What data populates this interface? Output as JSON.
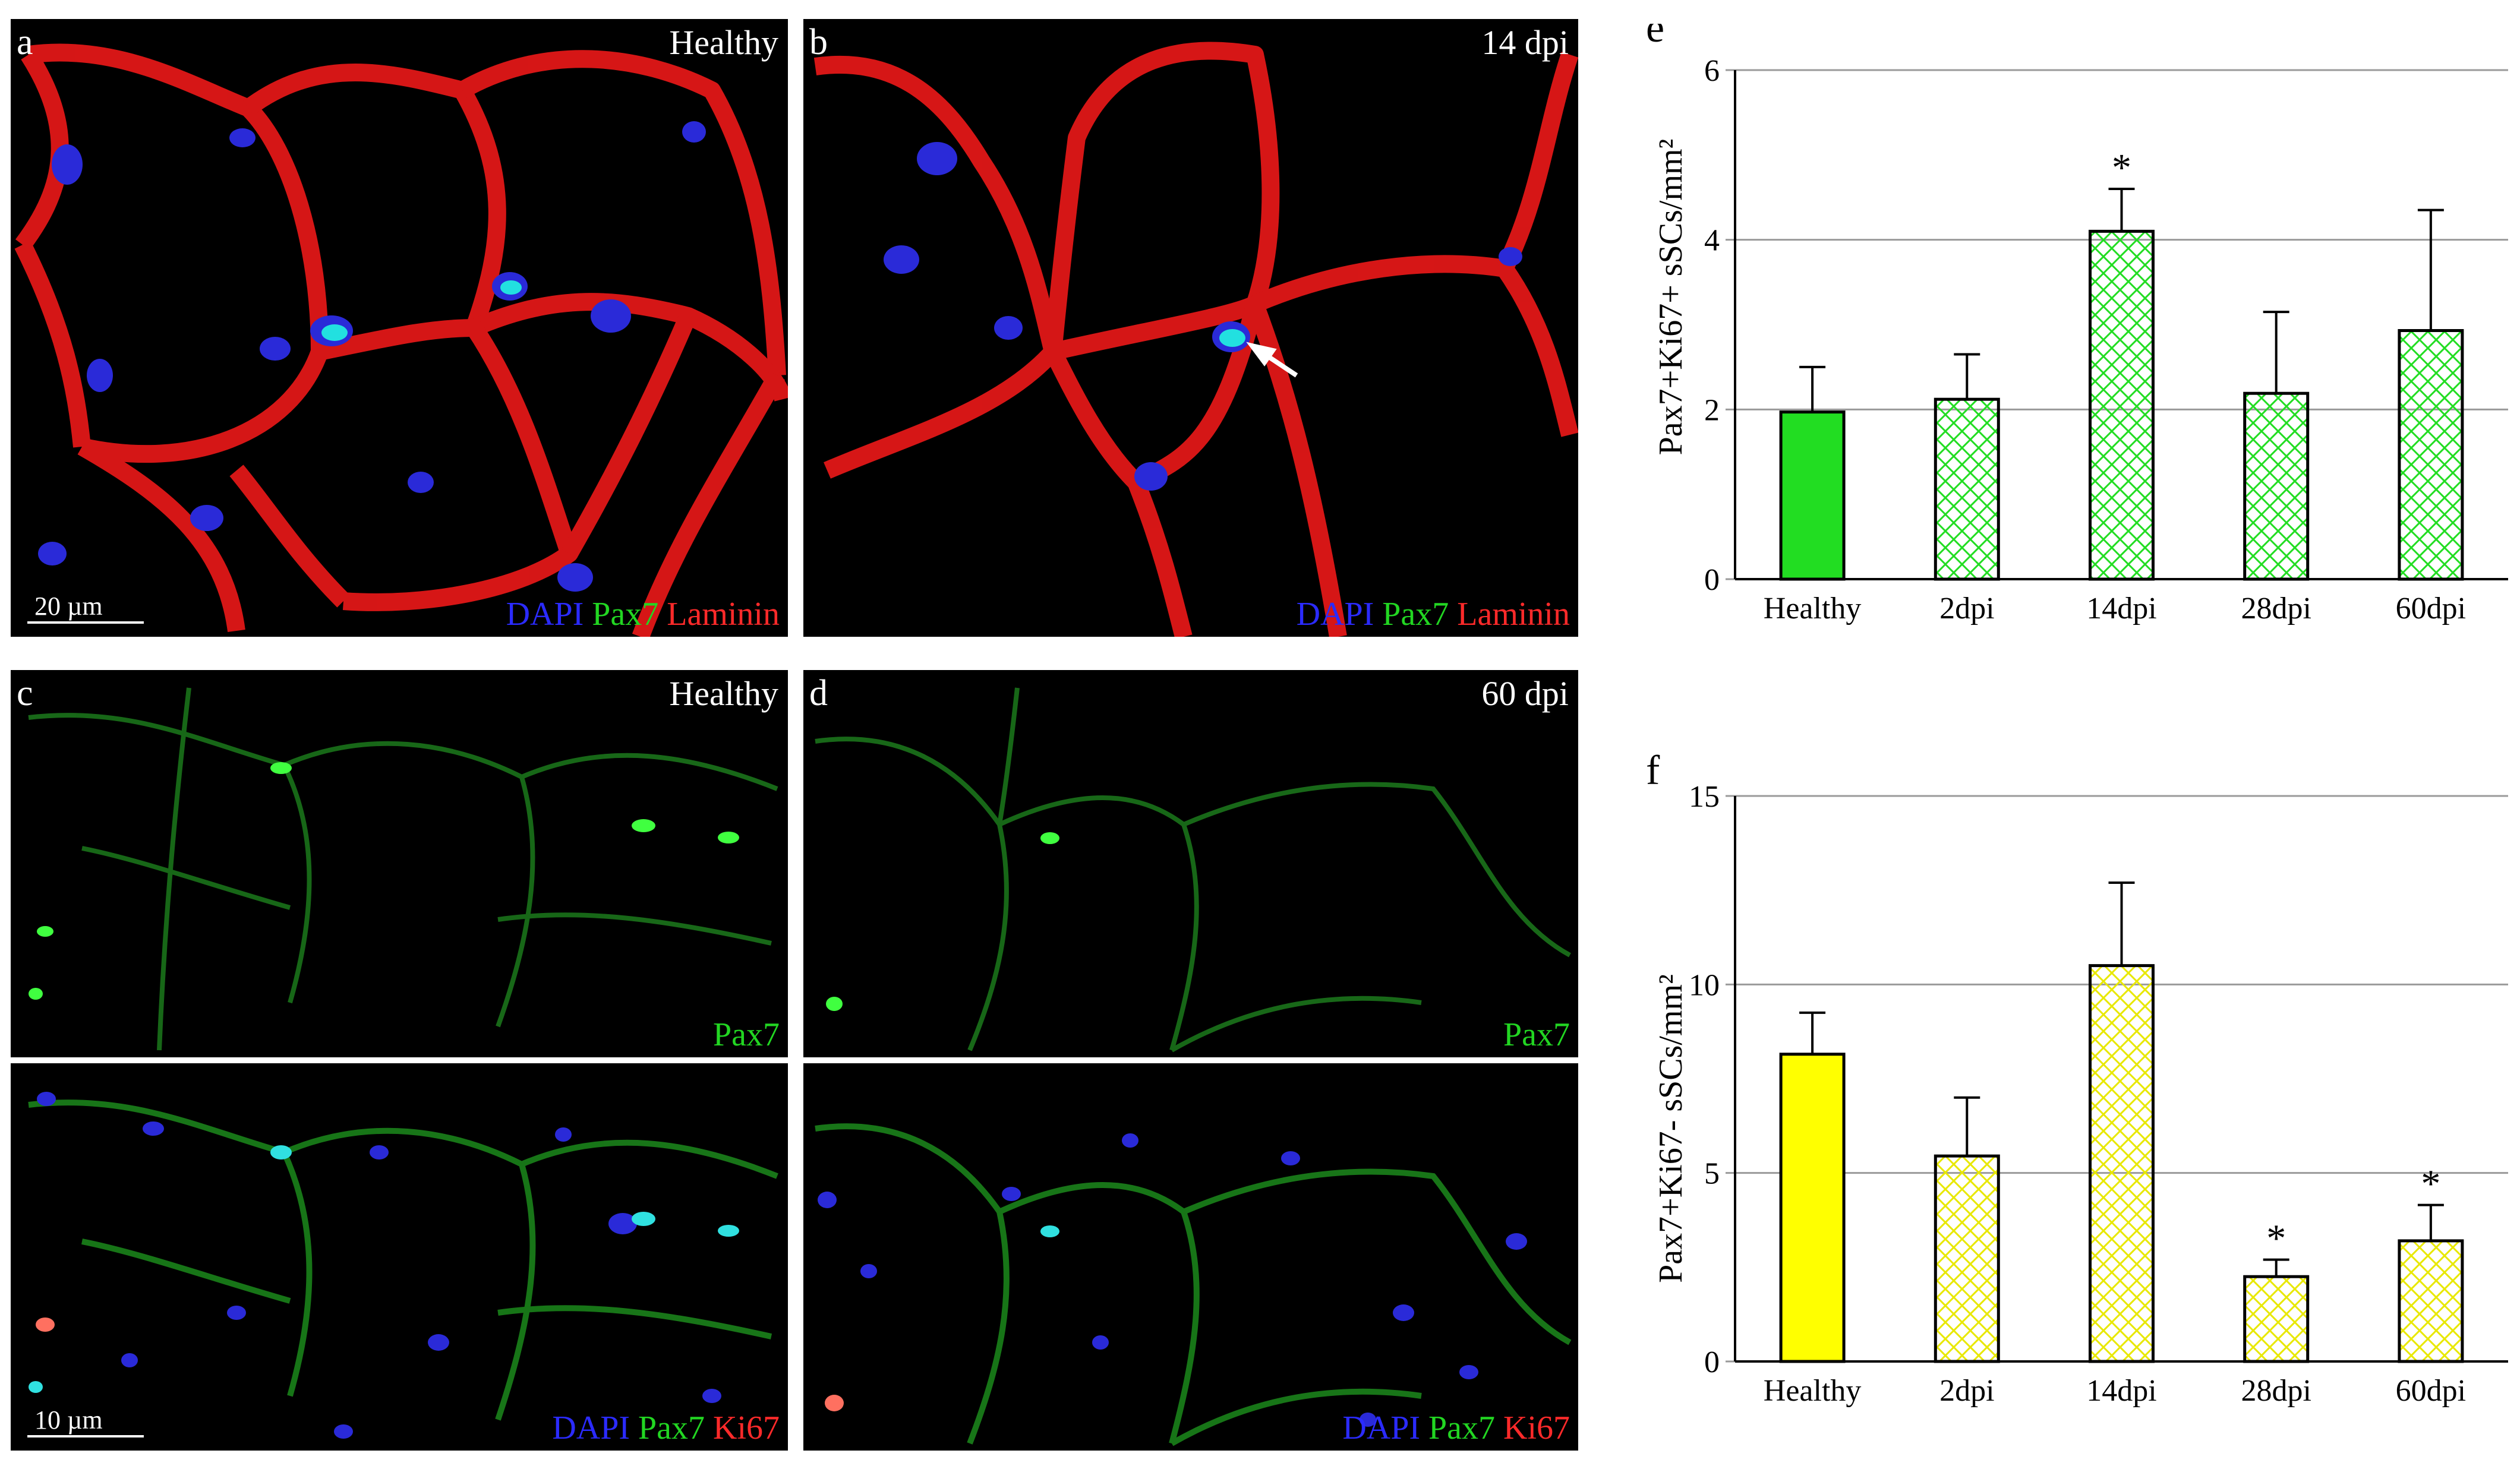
{
  "panels": {
    "a": {
      "label": "a",
      "condition": "Healthy",
      "stain": [
        "DAPI",
        "Pax7",
        "Laminin"
      ],
      "scale": "20 µm"
    },
    "b": {
      "label": "b",
      "condition": "14 dpi",
      "stain": [
        "DAPI",
        "Pax7",
        "Laminin"
      ]
    },
    "c": {
      "label": "c",
      "condition": "Healthy",
      "top_stain": "Pax7",
      "stain": [
        "DAPI",
        "Pax7",
        "Ki67"
      ],
      "scale": "10 µm"
    },
    "d": {
      "label": "d",
      "condition": "60 dpi",
      "top_stain": "Pax7",
      "stain": [
        "DAPI",
        "Pax7",
        "Ki67"
      ]
    }
  },
  "colors": {
    "blue": "#2b2bff",
    "green": "#22d622",
    "red": "#ff2a2a",
    "bar_e": "#22dd22",
    "bar_f": "#ffff00"
  },
  "chart_data": [
    {
      "type": "bar",
      "panel": "e",
      "ylabel": "Pax7+Ki67+ sSCs/mm²",
      "ylim": [
        0,
        6
      ],
      "yticks": [
        0,
        2,
        4,
        6
      ],
      "categories": [
        "Healthy",
        "2dpi",
        "14dpi",
        "28dpi",
        "60dpi"
      ],
      "values": [
        1.97,
        2.12,
        4.1,
        2.19,
        2.93
      ],
      "errors": [
        0.53,
        0.53,
        0.5,
        0.96,
        1.42
      ],
      "significant": [
        "",
        "",
        "*",
        "",
        ""
      ],
      "fill": "#22dd22",
      "hatched": [
        false,
        true,
        true,
        true,
        true
      ]
    },
    {
      "type": "bar",
      "panel": "f",
      "ylabel": "Pax7+Ki67- sSCs/mm²",
      "ylim": [
        0,
        15
      ],
      "yticks": [
        0,
        5,
        10,
        15
      ],
      "categories": [
        "Healthy",
        "2dpi",
        "14dpi",
        "28dpi",
        "60dpi"
      ],
      "values": [
        8.15,
        5.45,
        10.5,
        2.25,
        3.2
      ],
      "errors": [
        1.1,
        1.55,
        2.2,
        0.45,
        0.95
      ],
      "significant": [
        "",
        "",
        "",
        "*",
        "*"
      ],
      "fill": "#ffff00",
      "hatched": [
        false,
        true,
        true,
        true,
        true
      ]
    }
  ]
}
